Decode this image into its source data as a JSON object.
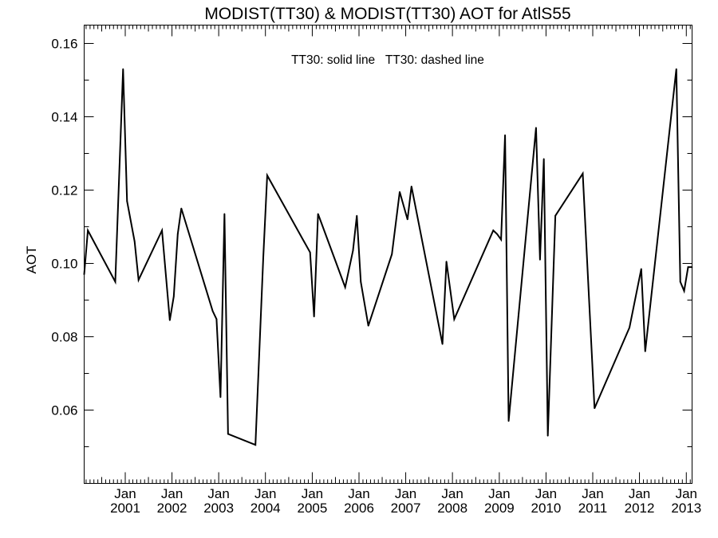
{
  "chart_data": {
    "type": "line",
    "title": "MODIST(TT30) & MODIST(TT30)  AOT for AtlS55",
    "annotation": "TT30: solid line   TT30: dashed line",
    "xlabel": "",
    "ylabel": "AOT",
    "xlim": [
      "2000-02-15",
      "2013-02-15"
    ],
    "ylim": [
      0.04,
      0.165
    ],
    "grid": false,
    "y_ticks": [
      "0.06",
      "0.08",
      "0.10",
      "0.12",
      "0.14",
      "0.16"
    ],
    "x_ticks": [
      {
        "month": "Jan",
        "year": "2001",
        "date": "2001-01-01"
      },
      {
        "month": "Jan",
        "year": "2002",
        "date": "2002-01-01"
      },
      {
        "month": "Jan",
        "year": "2003",
        "date": "2003-01-01"
      },
      {
        "month": "Jan",
        "year": "2004",
        "date": "2004-01-01"
      },
      {
        "month": "Jan",
        "year": "2005",
        "date": "2005-01-01"
      },
      {
        "month": "Jan",
        "year": "2006",
        "date": "2006-01-01"
      },
      {
        "month": "Jan",
        "year": "2007",
        "date": "2007-01-01"
      },
      {
        "month": "Jan",
        "year": "2008",
        "date": "2008-01-01"
      },
      {
        "month": "Jan",
        "year": "2009",
        "date": "2009-01-01"
      },
      {
        "month": "Jan",
        "year": "2010",
        "date": "2010-01-01"
      },
      {
        "month": "Jan",
        "year": "2011",
        "date": "2011-01-01"
      },
      {
        "month": "Jan",
        "year": "2012",
        "date": "2012-01-01"
      },
      {
        "month": "Jan",
        "year": "2013",
        "date": "2013-01-01"
      }
    ],
    "series": [
      {
        "style": "solid",
        "color": "#000000",
        "x": [
          "2000-02-15",
          "2000-03-15",
          "2000-10-15",
          "2000-12-15",
          "2001-01-15",
          "2001-03-15",
          "2001-04-15",
          "2001-10-15",
          "2001-12-15",
          "2002-01-15",
          "2002-02-15",
          "2002-03-15",
          "2002-11-15",
          "2002-12-15",
          "2003-01-15",
          "2003-02-15",
          "2003-03-15",
          "2003-10-15",
          "2003-12-15",
          "2004-01-15",
          "2004-12-15",
          "2005-01-15",
          "2005-02-15",
          "2005-09-15",
          "2005-11-15",
          "2005-12-15",
          "2006-01-15",
          "2006-03-15",
          "2006-09-15",
          "2006-11-15",
          "2007-01-15",
          "2007-02-15",
          "2007-10-15",
          "2007-11-15",
          "2008-01-15",
          "2008-11-15",
          "2008-12-15",
          "2009-01-15",
          "2009-02-15",
          "2009-03-15",
          "2009-10-15",
          "2009-11-15",
          "2009-12-15",
          "2010-01-15",
          "2010-03-15",
          "2010-10-15",
          "2011-01-15",
          "2011-10-15",
          "2012-01-15",
          "2012-02-15",
          "2012-10-15",
          "2012-11-15",
          "2012-12-15",
          "2013-01-15",
          "2013-02-15"
        ],
        "values": [
          0.097,
          0.109,
          0.095,
          0.153,
          0.117,
          0.106,
          0.0955,
          0.109,
          0.0845,
          0.091,
          0.108,
          0.115,
          0.087,
          0.0848,
          0.0635,
          0.1135,
          0.0535,
          0.0505,
          0.1015,
          0.124,
          0.103,
          0.0855,
          0.1135,
          0.0935,
          0.1035,
          0.113,
          0.095,
          0.083,
          0.1025,
          0.1195,
          0.112,
          0.121,
          0.078,
          0.1005,
          0.0848,
          0.109,
          0.108,
          0.1065,
          0.135,
          0.057,
          0.137,
          0.101,
          0.1285,
          0.053,
          0.113,
          0.1245,
          0.0605,
          0.0825,
          0.0985,
          0.076,
          0.153,
          0.095,
          0.0925,
          0.099,
          0.099
        ]
      }
    ]
  }
}
